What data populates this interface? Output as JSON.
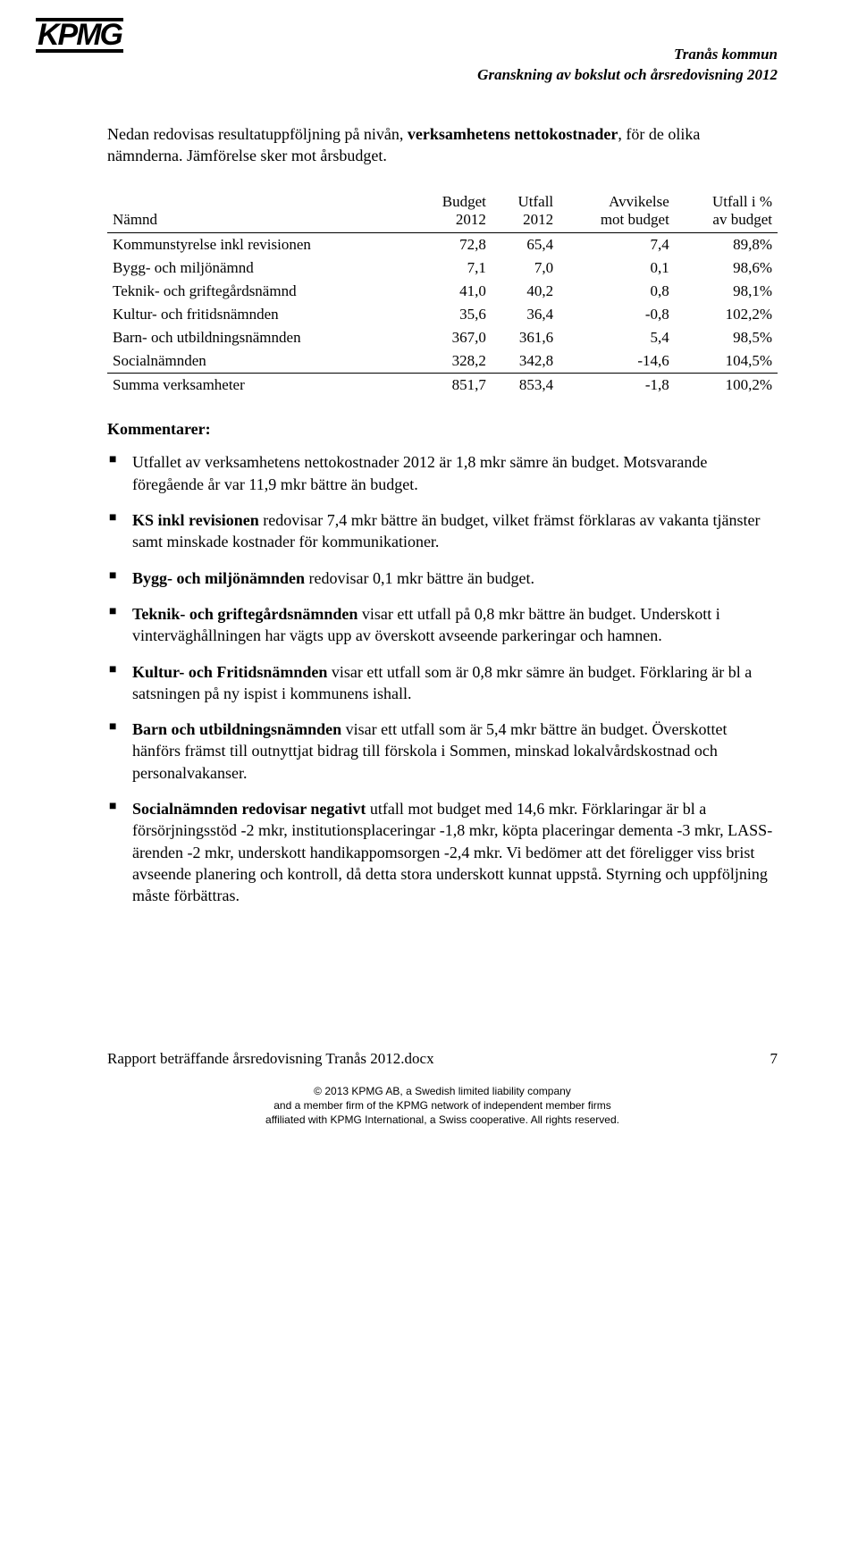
{
  "logo": "KPMG",
  "header": {
    "line1": "Tranås kommun",
    "line2": "Granskning av bokslut och årsredovisning 2012"
  },
  "intro": {
    "part1": "Nedan redovisas resultatuppföljning på nivån, ",
    "bold": "verksamhetens nettokostnader",
    "part2": ", för de olika nämnderna. Jämförelse sker mot årsbudget."
  },
  "table": {
    "headers": {
      "name": "Nämnd",
      "budget_l1": "Budget",
      "budget_l2": "2012",
      "utfall_l1": "Utfall",
      "utfall_l2": "2012",
      "avvik_l1": "Avvikelse",
      "avvik_l2": "mot budget",
      "pct_l1": "Utfall i %",
      "pct_l2": "av budget"
    },
    "rows": [
      {
        "name": "Kommunstyrelse inkl revisionen",
        "budget": "72,8",
        "utfall": "65,4",
        "avvik": "7,4",
        "pct": "89,8%"
      },
      {
        "name": "Bygg- och miljönämnd",
        "budget": "7,1",
        "utfall": "7,0",
        "avvik": "0,1",
        "pct": "98,6%"
      },
      {
        "name": "Teknik- och griftegårdsnämnd",
        "budget": "41,0",
        "utfall": "40,2",
        "avvik": "0,8",
        "pct": "98,1%"
      },
      {
        "name": "Kultur- och fritidsnämnden",
        "budget": "35,6",
        "utfall": "36,4",
        "avvik": "-0,8",
        "pct": "102,2%"
      },
      {
        "name": "Barn- och utbildningsnämnden",
        "budget": "367,0",
        "utfall": "361,6",
        "avvik": "5,4",
        "pct": "98,5%"
      },
      {
        "name": "Socialnämnden",
        "budget": "328,2",
        "utfall": "342,8",
        "avvik": "-14,6",
        "pct": "104,5%"
      }
    ],
    "sum": {
      "name": "Summa verksamheter",
      "budget": "851,7",
      "utfall": "853,4",
      "avvik": "-1,8",
      "pct": "100,2%"
    }
  },
  "comments_title": "Kommentarer:",
  "bullets": [
    {
      "bold": "",
      "text": "Utfallet av verksamhetens nettokostnader 2012 är 1,8 mkr sämre än budget. Motsvarande föregående år var 11,9 mkr bättre än budget."
    },
    {
      "bold": "KS inkl revisionen",
      "text": " redovisar 7,4 mkr bättre än budget, vilket främst förklaras av vakanta tjänster samt minskade kostnader för kommunikationer."
    },
    {
      "bold": "Bygg- och miljönämnden",
      "text": " redovisar 0,1 mkr bättre än budget."
    },
    {
      "bold": "Teknik- och griftegårdsnämnden",
      "text": " visar ett utfall på 0,8 mkr bättre än budget. Underskott i vinterväghållningen har vägts upp av överskott avseende parkeringar och hamnen."
    },
    {
      "bold": "Kultur- och Fritidsnämnden",
      "text": " visar ett utfall som är 0,8 mkr sämre än budget. Förklaring är bl a satsningen på ny ispist i kommunens ishall."
    },
    {
      "bold": "Barn och utbildningsnämnden",
      "text": " visar ett utfall som är 5,4 mkr bättre än budget. Överskottet hänförs främst till outnyttjat bidrag till förskola i Sommen, minskad lokalvårdskostnad och personalvakanser."
    },
    {
      "bold": "Socialnämnden redovisar negativt",
      "text": " utfall mot budget med 14,6 mkr. Förklaringar är bl a försörjningsstöd -2 mkr, institutionsplaceringar -1,8 mkr, köpta placeringar dementa -3 mkr, LASS-ärenden -2 mkr, underskott handikappomsorgen -2,4 mkr. Vi bedömer att det föreligger viss brist avseende planering och kontroll, då detta stora underskott kunnat uppstå. Styrning och uppföljning måste förbättras."
    }
  ],
  "footer": {
    "doc": "Rapport beträffande årsredovisning Tranås 2012.docx",
    "page": "7",
    "copy1": "© 2013 KPMG AB, a Swedish limited liability company",
    "copy2": "and a member firm of the KPMG network of independent member firms",
    "copy3": "affiliated with KPMG International, a Swiss cooperative. All rights reserved."
  }
}
